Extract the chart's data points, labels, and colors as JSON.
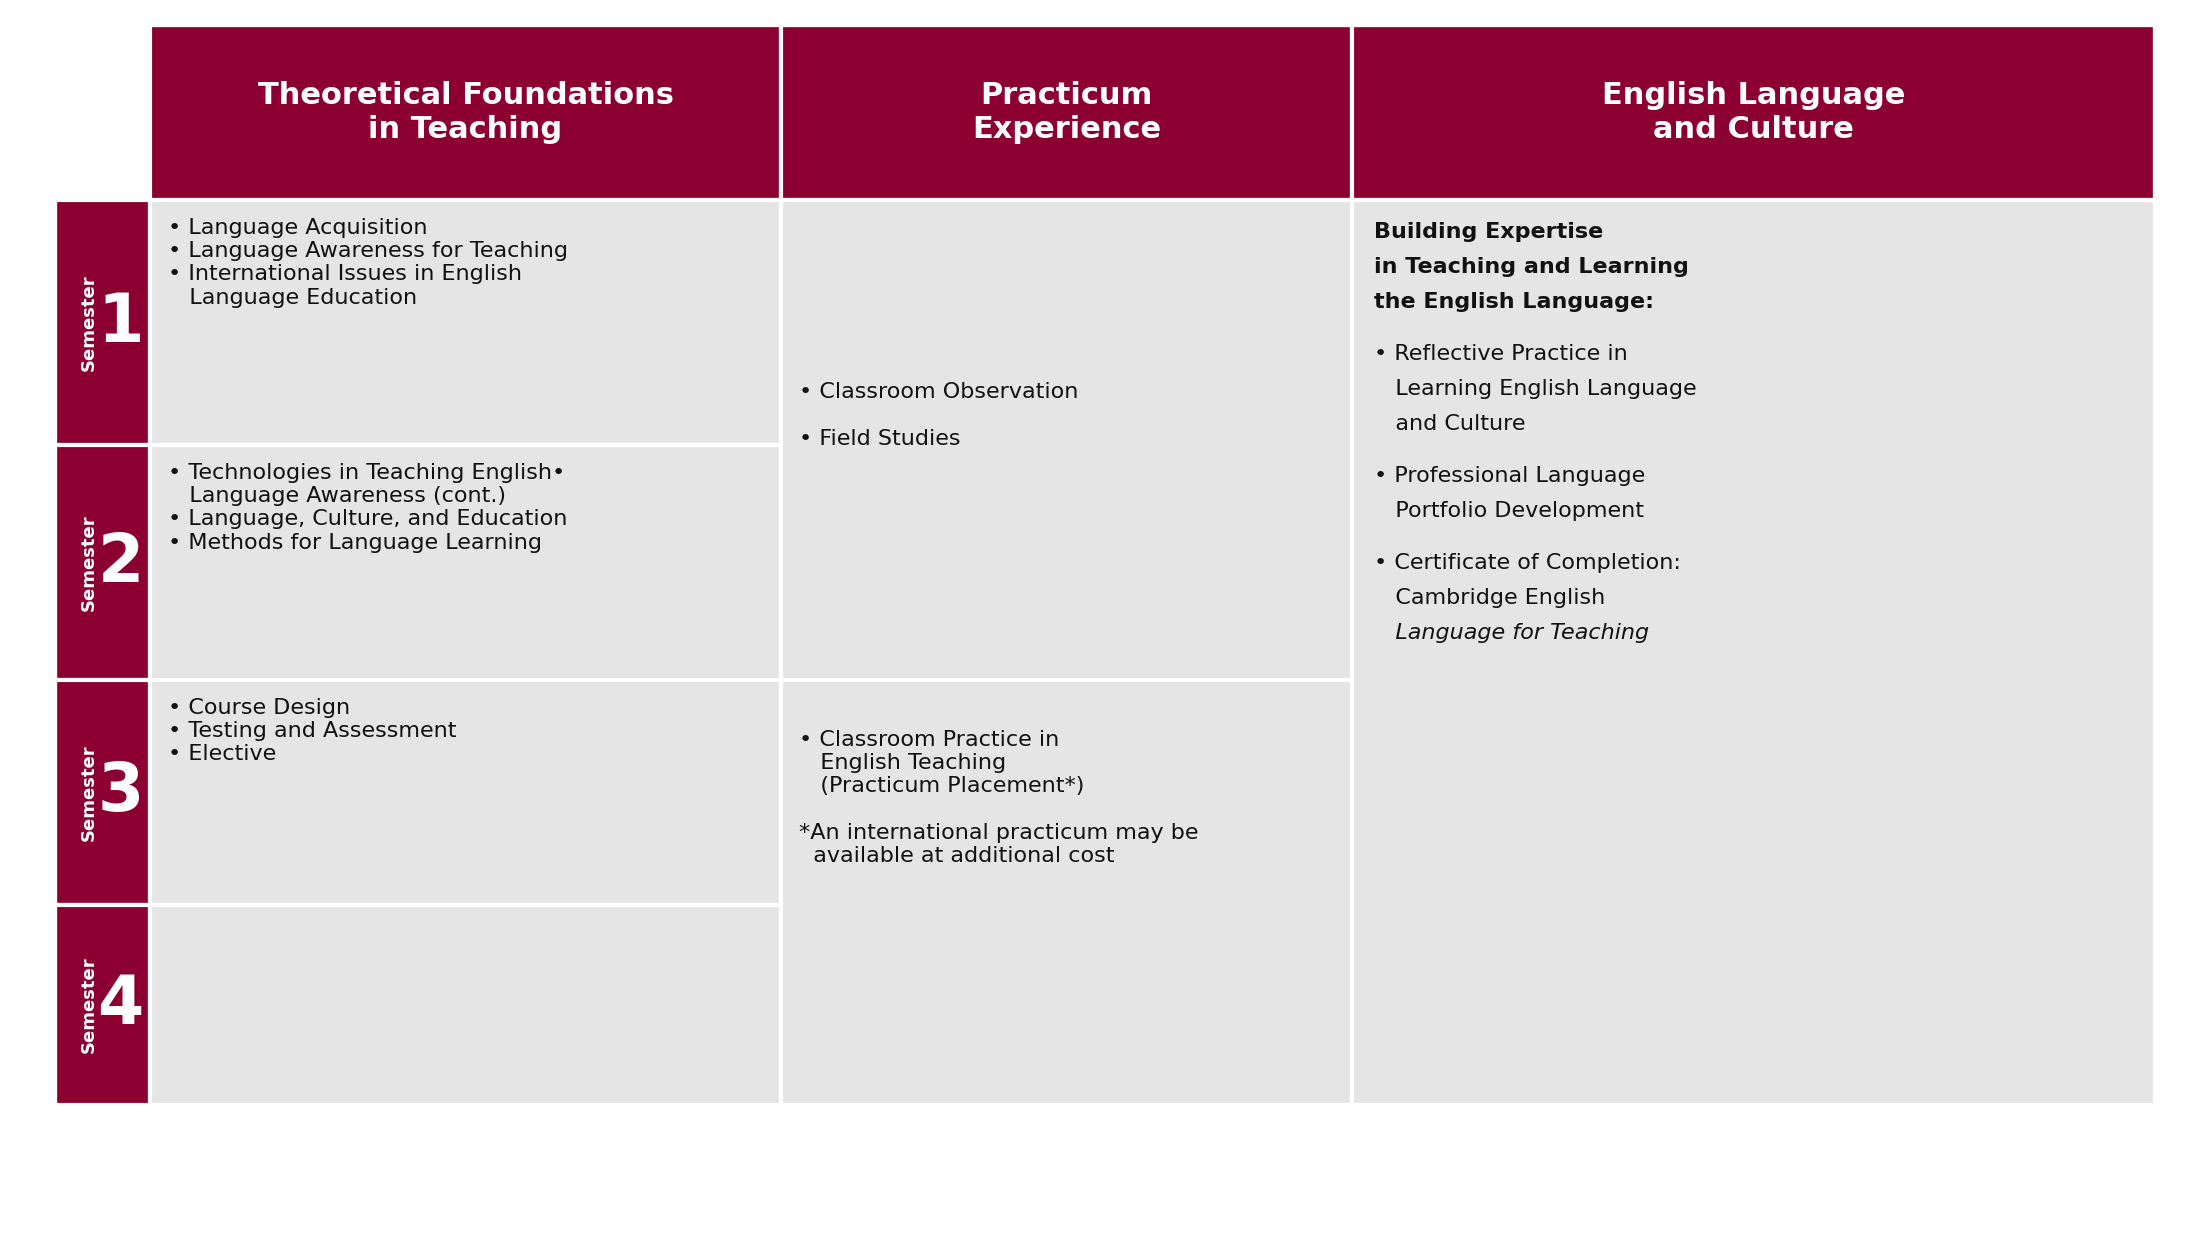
{
  "bg_color": "#ffffff",
  "header_bg": "#8B0030",
  "cell_bg": "#e5e5e5",
  "border_color": "#ffffff",
  "header_text_color": "#ffffff",
  "cell_text_color": "#111111",
  "semester_bg": "#8B0030",
  "headers": [
    "Theoretical Foundations\nin Teaching",
    "Practicum\nExperience",
    "English Language\nand Culture"
  ],
  "col1_rows": [
    "• Language Acquisition\n• Language Awareness for Teaching\n• International Issues in English\n   Language Education",
    "• Technologies in Teaching English•\n   Language Awareness (cont.)\n• Language, Culture, and Education\n• Methods for Language Learning",
    "• Course Design\n• Testing and Assessment\n• Elective",
    ""
  ],
  "col2_text_top": "• Classroom Observation\n\n• Field Studies",
  "col2_text_bottom": "• Classroom Practice in\n   English Teaching\n   (Practicum Placement*)\n\n*An international practicum may be\n  available at additional cost",
  "col3_lines": [
    {
      "text": "Building Expertise",
      "bold": true,
      "italic": false
    },
    {
      "text": "in Teaching and Learning",
      "bold": true,
      "italic": false
    },
    {
      "text": "the English Language:",
      "bold": true,
      "italic": false
    },
    {
      "text": "",
      "bold": false,
      "italic": false
    },
    {
      "text": "• Reflective Practice in",
      "bold": false,
      "italic": false
    },
    {
      "text": "   Learning English Language",
      "bold": false,
      "italic": false
    },
    {
      "text": "   and Culture",
      "bold": false,
      "italic": false
    },
    {
      "text": "",
      "bold": false,
      "italic": false
    },
    {
      "text": "• Professional Language",
      "bold": false,
      "italic": false
    },
    {
      "text": "   Portfolio Development",
      "bold": false,
      "italic": false
    },
    {
      "text": "",
      "bold": false,
      "italic": false
    },
    {
      "text": "• Certificate of Completion:",
      "bold": false,
      "italic": false
    },
    {
      "text": "   Cambridge English",
      "bold": false,
      "italic": false
    },
    {
      "text": "   Language for Teaching",
      "bold": false,
      "italic": true
    }
  ],
  "fig_width": 22.0,
  "fig_height": 12.5,
  "dpi": 100
}
